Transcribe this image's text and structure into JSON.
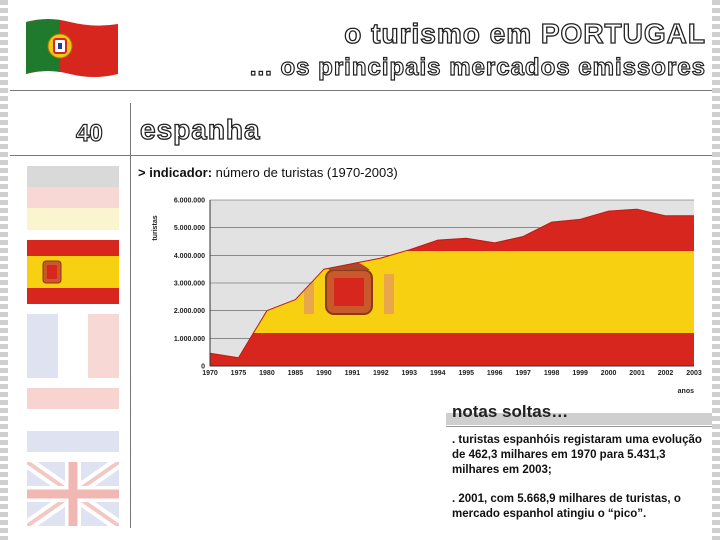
{
  "header": {
    "title": "o turismo em PORTUGAL",
    "subtitle": "... os principais mercados emissores"
  },
  "section": {
    "number": "40",
    "title": "espanha"
  },
  "indicator": {
    "label_bold": "> indicador:",
    "label_text": " número de turistas (1970-2003)"
  },
  "chart_data": {
    "type": "area",
    "title": "",
    "ylabel": "turistas",
    "xlabel": "anos",
    "ylim": [
      0,
      6000000
    ],
    "yticks": [
      "0",
      "1.000.000",
      "2.000.000",
      "3.000.000",
      "4.000.000",
      "5.000.000",
      "6.000.000"
    ],
    "categories": [
      "1970",
      "1975",
      "1980",
      "1985",
      "1990",
      "1991",
      "1992",
      "1993",
      "1994",
      "1995",
      "1996",
      "1997",
      "1998",
      "1999",
      "2000",
      "2001",
      "2002",
      "2003"
    ],
    "series": [
      {
        "values": [
          462300,
          300000,
          2000000,
          2400000,
          3500000,
          3700000,
          3900000,
          4200000,
          4550000,
          4620000,
          4450000,
          4680000,
          5200000,
          5300000,
          5600000,
          5668900,
          5430000,
          5431300
        ]
      }
    ],
    "grid": true,
    "colors": {
      "red": "#d7261e",
      "yellow": "#f7d111",
      "background": "#e2e2e2"
    }
  },
  "notes": {
    "title": "notas soltas…",
    "items": [
      ". turistas espanhóis registaram uma evolução de 462,3 milhares em 1970 para 5.431,3 milhares em 2003;",
      ". 2001, com 5.668,9 milhares de turistas, o mercado espanhol atingiu o “pico”."
    ]
  },
  "flags": [
    "portugal-flag",
    "germany-flag",
    "spain-flag",
    "france-flag",
    "netherlands-flag",
    "uk-flag"
  ]
}
